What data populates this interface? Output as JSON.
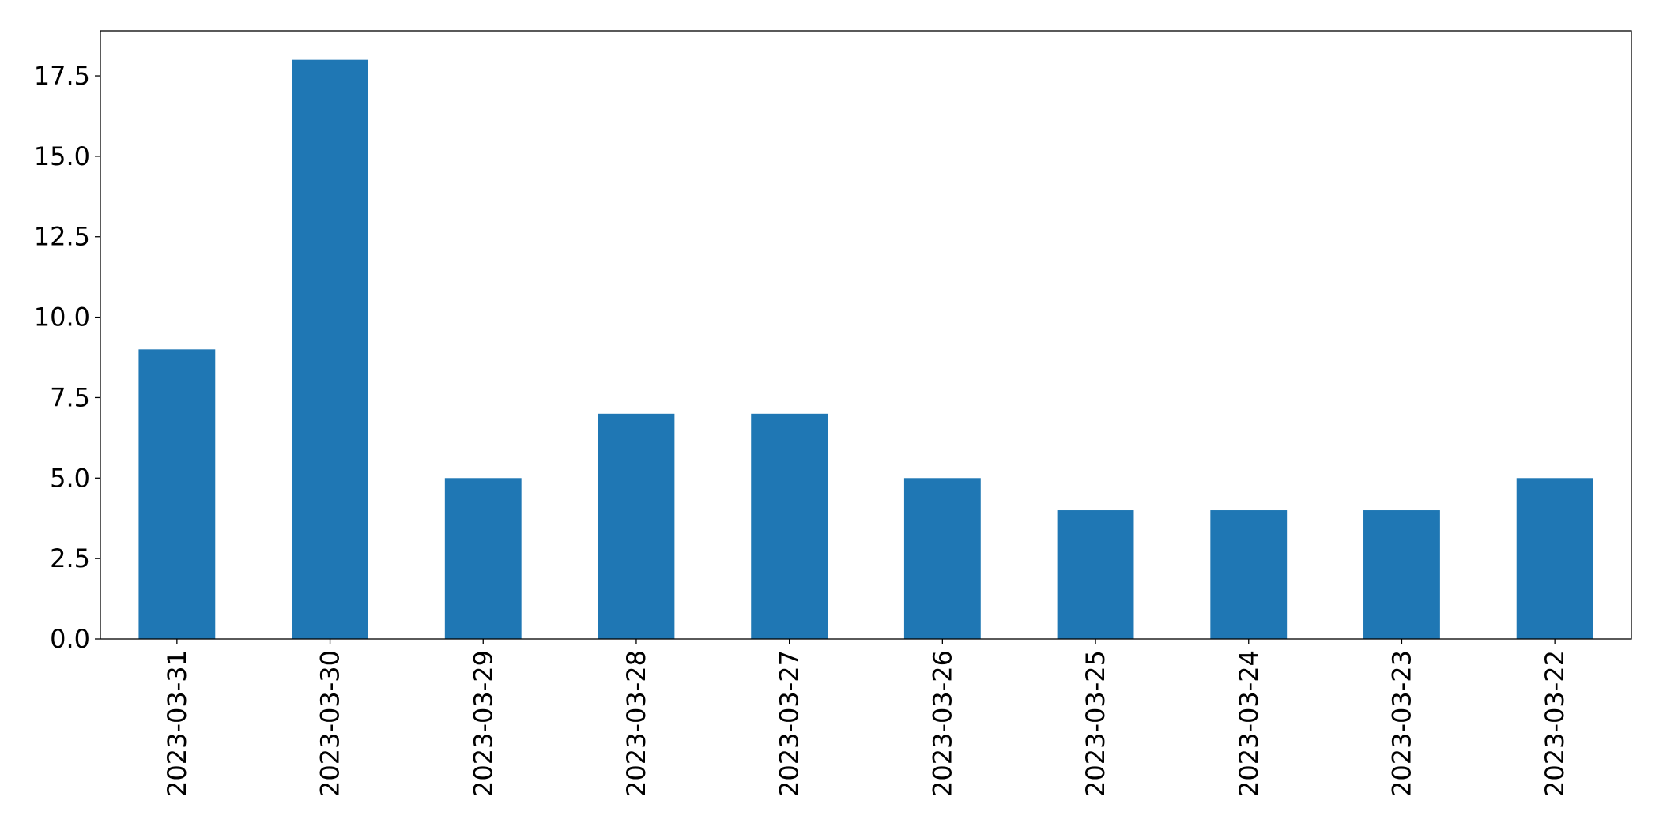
{
  "chart_data": {
    "type": "bar",
    "categories": [
      "2023-03-31",
      "2023-03-30",
      "2023-03-29",
      "2023-03-28",
      "2023-03-27",
      "2023-03-26",
      "2023-03-25",
      "2023-03-24",
      "2023-03-23",
      "2023-03-22"
    ],
    "values": [
      9,
      18,
      5,
      7,
      7,
      5,
      4,
      4,
      4,
      5
    ],
    "color": "#1f77b4",
    "ylim": [
      0,
      18.9
    ],
    "yticks": [
      {
        "value": 0,
        "label": "0.0"
      },
      2.5,
      {
        "value": 5,
        "label": "5.0"
      },
      7.5,
      {
        "value": 10,
        "label": "10.0"
      },
      12.5,
      {
        "value": 15,
        "label": "15.0"
      },
      17.5
    ],
    "grid": false
  }
}
